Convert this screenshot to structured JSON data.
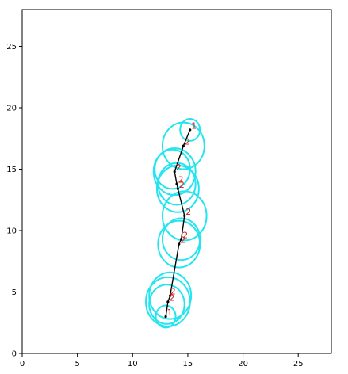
{
  "chart_data": {
    "type": "scatter",
    "title": "",
    "xlabel": "",
    "ylabel": "",
    "xlim": [
      0,
      28
    ],
    "ylim": [
      0,
      28
    ],
    "xticks": [
      "0",
      "5",
      "10",
      "15",
      "20",
      "25"
    ],
    "yticks": [
      "0",
      "5",
      "10",
      "15",
      "20",
      "25"
    ],
    "grid": false,
    "colors": {
      "circle": "#22e5f0",
      "path": "#000000",
      "label": "#cc2222",
      "axis": "#000000"
    },
    "path": [
      {
        "x": 13.0,
        "y": 3.0
      },
      {
        "x": 13.2,
        "y": 4.2
      },
      {
        "x": 13.4,
        "y": 4.7
      },
      {
        "x": 14.2,
        "y": 8.9
      },
      {
        "x": 14.4,
        "y": 9.3
      },
      {
        "x": 14.7,
        "y": 11.2
      },
      {
        "x": 14.1,
        "y": 13.4
      },
      {
        "x": 14.0,
        "y": 13.8
      },
      {
        "x": 13.8,
        "y": 14.8
      },
      {
        "x": 14.6,
        "y": 16.9
      },
      {
        "x": 15.2,
        "y": 18.2
      }
    ],
    "circles": [
      {
        "x": 13.0,
        "y": 3.0,
        "r": 0.9
      },
      {
        "x": 13.2,
        "y": 4.2,
        "r": 2.0
      },
      {
        "x": 13.1,
        "y": 4.0,
        "r": 1.6
      },
      {
        "x": 13.4,
        "y": 4.7,
        "r": 1.9
      },
      {
        "x": 14.2,
        "y": 8.9,
        "r": 1.9
      },
      {
        "x": 14.4,
        "y": 9.3,
        "r": 1.7
      },
      {
        "x": 14.7,
        "y": 11.2,
        "r": 2.0
      },
      {
        "x": 14.1,
        "y": 13.4,
        "r": 1.9
      },
      {
        "x": 14.0,
        "y": 13.8,
        "r": 1.7
      },
      {
        "x": 13.8,
        "y": 14.8,
        "r": 1.9
      },
      {
        "x": 13.6,
        "y": 15.0,
        "r": 1.6
      },
      {
        "x": 14.6,
        "y": 16.9,
        "r": 1.9
      },
      {
        "x": 15.2,
        "y": 18.2,
        "r": 0.9
      }
    ],
    "labels": [
      {
        "x": 13.0,
        "y": 3.0,
        "text": "1"
      },
      {
        "x": 13.2,
        "y": 4.2,
        "text": "2"
      },
      {
        "x": 13.3,
        "y": 4.7,
        "text": "2"
      },
      {
        "x": 14.2,
        "y": 8.9,
        "text": "2"
      },
      {
        "x": 14.4,
        "y": 9.3,
        "text": "2"
      },
      {
        "x": 14.7,
        "y": 11.2,
        "text": "2"
      },
      {
        "x": 14.1,
        "y": 13.4,
        "text": "2"
      },
      {
        "x": 14.0,
        "y": 13.8,
        "text": "2"
      },
      {
        "x": 13.8,
        "y": 14.8,
        "text": "2"
      },
      {
        "x": 14.6,
        "y": 16.9,
        "text": "2"
      },
      {
        "x": 15.2,
        "y": 18.2,
        "text": "1"
      }
    ]
  }
}
